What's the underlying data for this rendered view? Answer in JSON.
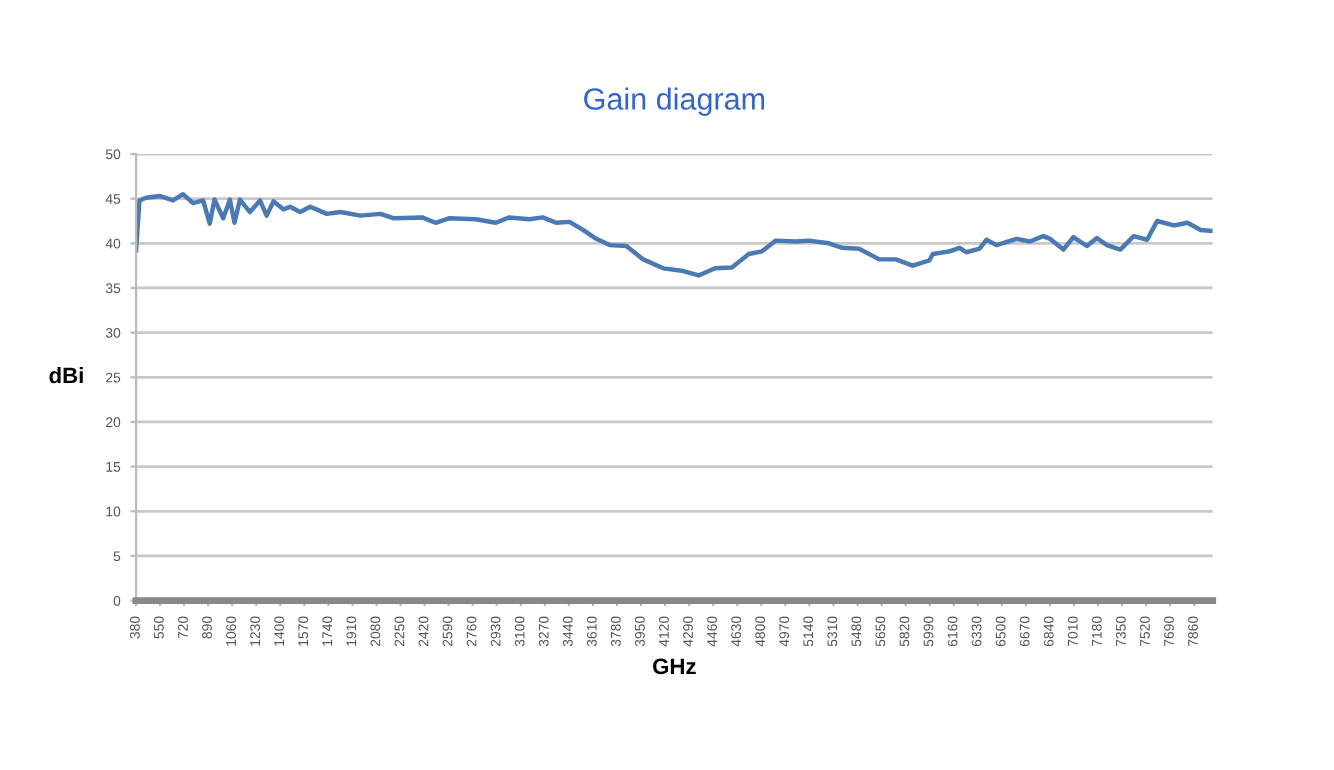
{
  "chart_data": {
    "type": "line",
    "title": "Gain diagram",
    "xlabel": "GHz",
    "ylabel": "dBi",
    "xlim": [
      380,
      7990
    ],
    "xticks": [
      380,
      550,
      720,
      890,
      1060,
      1230,
      1400,
      1570,
      1740,
      1910,
      2080,
      2250,
      2420,
      2590,
      2760,
      2930,
      3100,
      3270,
      3440,
      3610,
      3780,
      3950,
      4120,
      4290,
      4460,
      4630,
      4800,
      4970,
      5140,
      5310,
      5480,
      5650,
      5820,
      5990,
      6160,
      6330,
      6500,
      6670,
      6840,
      7010,
      7180,
      7350,
      7520,
      7690,
      7860
    ],
    "ylim": [
      0,
      50
    ],
    "yticks": [
      0,
      5,
      10,
      15,
      20,
      25,
      30,
      35,
      40,
      45,
      50
    ],
    "grid": "y",
    "marker": "none",
    "line_style": "solid",
    "series": [
      {
        "color": "#4a7ab5",
        "x": [
          380,
          404,
          451,
          546,
          641,
          712,
          783,
          854,
          901,
          934,
          996,
          1043,
          1076,
          1114,
          1185,
          1256,
          1303,
          1351,
          1422,
          1469,
          1540,
          1611,
          1729,
          1824,
          1966,
          2108,
          2203,
          2402,
          2497,
          2592,
          2781,
          2923,
          3018,
          3160,
          3254,
          3349,
          3444,
          3539,
          3633,
          3728,
          3846,
          3965,
          4107,
          4249,
          4356,
          4474,
          4592,
          4711,
          4805,
          4900,
          5042,
          5136,
          5278,
          5373,
          5491,
          5633,
          5752,
          5870,
          5988,
          6012,
          6130,
          6201,
          6249,
          6343,
          6391,
          6462,
          6604,
          6698,
          6793,
          6840,
          6935,
          7006,
          7101,
          7172,
          7243,
          7338,
          7432,
          7527,
          7598,
          7716,
          7811,
          7906,
          7977
        ],
        "values": [
          39.2,
          44.8,
          45.1,
          45.3,
          44.8,
          45.5,
          44.5,
          44.8,
          42.2,
          44.9,
          42.8,
          44.9,
          42.3,
          44.9,
          43.5,
          44.8,
          43.1,
          44.7,
          43.8,
          44.1,
          43.5,
          44.1,
          43.3,
          43.5,
          43.1,
          43.3,
          42.8,
          42.9,
          42.3,
          42.8,
          42.7,
          42.3,
          42.9,
          42.7,
          42.9,
          42.3,
          42.4,
          41.5,
          40.5,
          39.8,
          39.7,
          38.2,
          37.2,
          36.9,
          36.4,
          37.2,
          37.3,
          38.8,
          39.1,
          40.3,
          40.2,
          40.3,
          40.0,
          39.5,
          39.4,
          38.2,
          38.2,
          37.5,
          38.1,
          38.8,
          39.1,
          39.5,
          39.0,
          39.4,
          40.4,
          39.8,
          40.5,
          40.2,
          40.8,
          40.5,
          39.3,
          40.7,
          39.7,
          40.6,
          39.8,
          39.3,
          40.8,
          40.4,
          42.5,
          42.0,
          42.3,
          41.5,
          41.4
        ]
      }
    ]
  }
}
